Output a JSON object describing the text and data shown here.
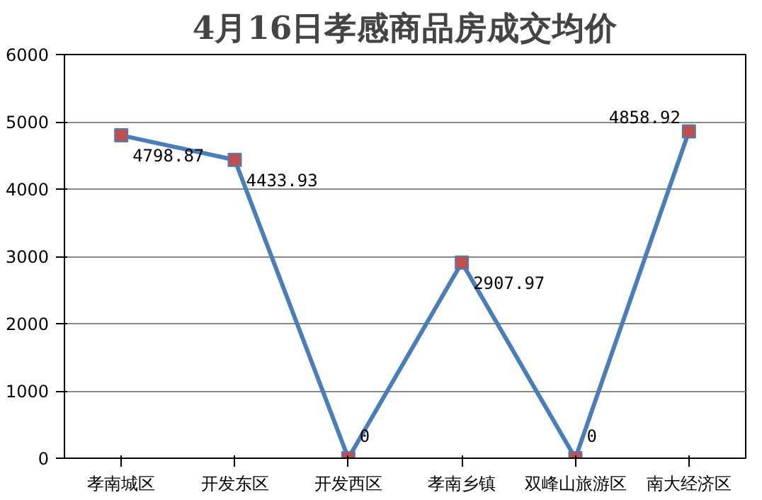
{
  "chart_data": {
    "type": "line",
    "title": "4月16日孝感商品房成交均价",
    "categories": [
      "孝南城区",
      "开发东区",
      "开发西区",
      "孝南乡镇",
      "双峰山旅游区",
      "南大经济区"
    ],
    "series": [
      {
        "color": "#4a7ebb",
        "values": [
          4798.87,
          4433.93,
          0,
          2907.97,
          0,
          4858.92
        ]
      }
    ],
    "ylim": [
      0,
      6000
    ],
    "yticks": [
      0,
      1000,
      2000,
      3000,
      4000,
      5000,
      6000
    ],
    "grid": "y",
    "marker": "square",
    "line_style": "solid",
    "data_labels": true
  }
}
